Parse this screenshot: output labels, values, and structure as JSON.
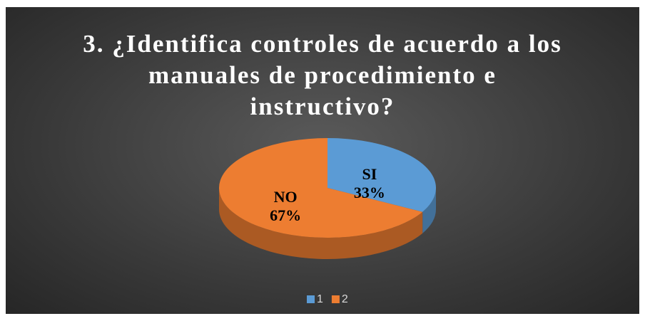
{
  "chart_data": {
    "type": "pie",
    "title": "3. ¿Identifica controles de acuerdo a los manuales de procedimiento e instructivo?",
    "categories": [
      "1",
      "2"
    ],
    "labels": [
      "SI",
      "NO"
    ],
    "values": [
      33,
      67
    ],
    "value_labels": [
      "33%",
      "67%"
    ],
    "colors": [
      "#5b9bd5",
      "#ed7d31"
    ],
    "legend": "bottom"
  }
}
